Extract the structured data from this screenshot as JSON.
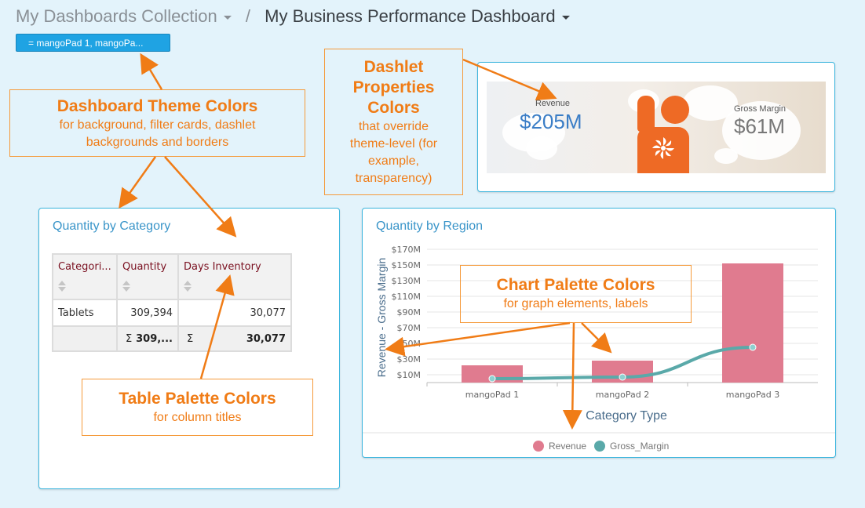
{
  "header": {
    "collection": "My Dashboards Collection",
    "separator": "/",
    "dashboard": "My Business Performance Dashboard",
    "filter_chip": "= mangoPad 1, mangoPa..."
  },
  "kpi": {
    "revenue_label": "Revenue",
    "revenue_value": "$205M",
    "gm_label": "Gross Margin",
    "gm_value": "$61M"
  },
  "table_dashlet": {
    "title": "Quantity by Category",
    "columns": [
      "Categori...",
      "Quantity",
      "Days Inventory"
    ],
    "rows": [
      [
        "Tablets",
        "309,394",
        "30,077"
      ]
    ],
    "totals": [
      "",
      "309,...",
      "30,077"
    ],
    "sigma": "Σ"
  },
  "chart_dashlet": {
    "title": "Quantity by Region"
  },
  "chart_data": {
    "type": "bar",
    "categories": [
      "mangoPad 1",
      "mangoPad 2",
      "mangoPad 3"
    ],
    "series": [
      {
        "name": "Revenue",
        "type": "bar",
        "values": [
          22,
          28,
          152
        ],
        "color": "#e07b8f"
      },
      {
        "name": "Gross_Margin",
        "type": "line",
        "values": [
          5,
          7,
          45
        ],
        "color": "#5aa9a9"
      }
    ],
    "ylabel": "Revenue - Gross Margin",
    "xlabel": "Category Type",
    "ylim": [
      0,
      170
    ],
    "yticks": [
      "$10M",
      "$30M",
      "$50M",
      "$70M",
      "$90M",
      "$110M",
      "$130M",
      "$150M",
      "$170M"
    ],
    "ytick_values": [
      10,
      30,
      50,
      70,
      90,
      110,
      130,
      150,
      170
    ],
    "grid": true,
    "legend_placement": "bottom-center"
  },
  "callouts": {
    "theme": {
      "title": "Dashboard Theme Colors",
      "lines": [
        "for background, filter cards, dashlet",
        "backgrounds and borders"
      ]
    },
    "dashlet_props": {
      "lines_title": [
        "Dashlet",
        "Properties",
        "Colors"
      ],
      "lines": [
        "that override",
        "theme-level (for",
        "example,",
        "transparency)"
      ]
    },
    "table_palette": {
      "title": "Table Palette Colors",
      "sub": "for column titles"
    },
    "chart_palette": {
      "title": "Chart Palette Colors",
      "sub": "for graph elements, labels"
    }
  },
  "colors": {
    "accent": "#1fa3e3",
    "callout": "#f07c16",
    "dashlet_border": "#3db6de",
    "column_title": "#7a1020"
  }
}
